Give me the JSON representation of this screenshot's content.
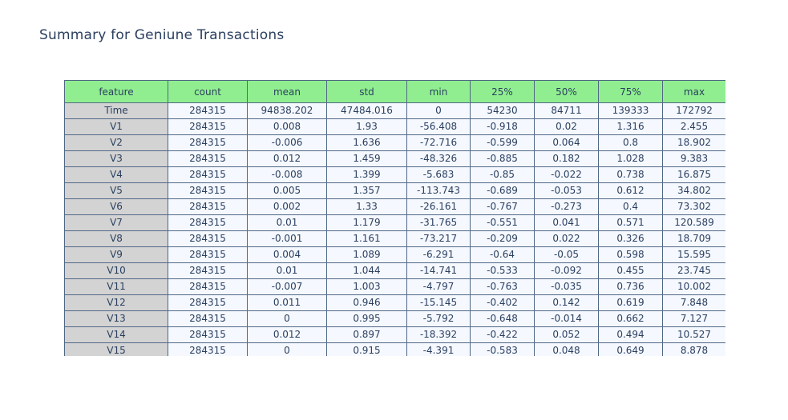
{
  "chart_data": {
    "type": "table",
    "title": "Summary for Geniune Transactions",
    "columns": [
      "feature",
      "count",
      "mean",
      "std",
      "min",
      "25%",
      "50%",
      "75%",
      "max"
    ],
    "rows": [
      [
        "Time",
        "284315",
        "94838.202",
        "47484.016",
        "0",
        "54230",
        "84711",
        "139333",
        "172792"
      ],
      [
        "V1",
        "284315",
        "0.008",
        "1.93",
        "-56.408",
        "-0.918",
        "0.02",
        "1.316",
        "2.455"
      ],
      [
        "V2",
        "284315",
        "-0.006",
        "1.636",
        "-72.716",
        "-0.599",
        "0.064",
        "0.8",
        "18.902"
      ],
      [
        "V3",
        "284315",
        "0.012",
        "1.459",
        "-48.326",
        "-0.885",
        "0.182",
        "1.028",
        "9.383"
      ],
      [
        "V4",
        "284315",
        "-0.008",
        "1.399",
        "-5.683",
        "-0.85",
        "-0.022",
        "0.738",
        "16.875"
      ],
      [
        "V5",
        "284315",
        "0.005",
        "1.357",
        "-113.743",
        "-0.689",
        "-0.053",
        "0.612",
        "34.802"
      ],
      [
        "V6",
        "284315",
        "0.002",
        "1.33",
        "-26.161",
        "-0.767",
        "-0.273",
        "0.4",
        "73.302"
      ],
      [
        "V7",
        "284315",
        "0.01",
        "1.179",
        "-31.765",
        "-0.551",
        "0.041",
        "0.571",
        "120.589"
      ],
      [
        "V8",
        "284315",
        "-0.001",
        "1.161",
        "-73.217",
        "-0.209",
        "0.022",
        "0.326",
        "18.709"
      ],
      [
        "V9",
        "284315",
        "0.004",
        "1.089",
        "-6.291",
        "-0.64",
        "-0.05",
        "0.598",
        "15.595"
      ],
      [
        "V10",
        "284315",
        "0.01",
        "1.044",
        "-14.741",
        "-0.533",
        "-0.092",
        "0.455",
        "23.745"
      ],
      [
        "V11",
        "284315",
        "-0.007",
        "1.003",
        "-4.797",
        "-0.763",
        "-0.035",
        "0.736",
        "10.002"
      ],
      [
        "V12",
        "284315",
        "0.011",
        "0.946",
        "-15.145",
        "-0.402",
        "0.142",
        "0.619",
        "7.848"
      ],
      [
        "V13",
        "284315",
        "0",
        "0.995",
        "-5.792",
        "-0.648",
        "-0.014",
        "0.662",
        "7.127"
      ],
      [
        "V14",
        "284315",
        "0.012",
        "0.897",
        "-18.392",
        "-0.422",
        "0.052",
        "0.494",
        "10.527"
      ],
      [
        "V15",
        "284315",
        "0",
        "0.915",
        "-4.391",
        "-0.583",
        "0.048",
        "0.649",
        "8.878"
      ]
    ],
    "colors": {
      "header_fill": "#90ee90",
      "feature_fill": "#d3d3d3",
      "cell_fill": "#f5f8ff",
      "border": "#506784",
      "text": "#2a3f5f"
    }
  }
}
